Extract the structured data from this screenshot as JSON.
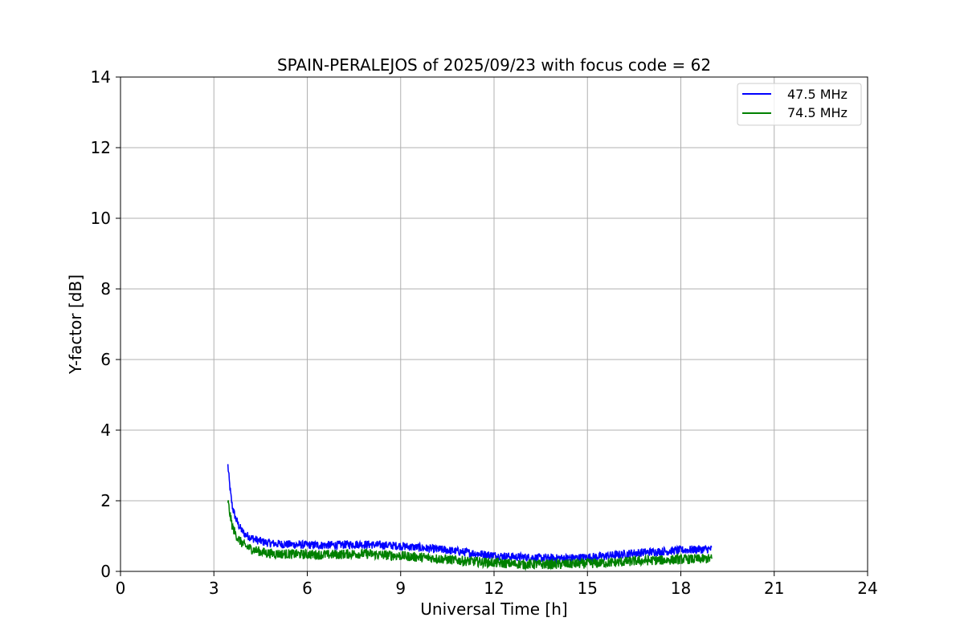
{
  "chart_data": {
    "type": "line",
    "title": "SPAIN-PERALEJOS of 2025/09/23 with focus code = 62",
    "xlabel": "Universal Time [h]",
    "ylabel": "Y-factor [dB]",
    "xlim": [
      0,
      24
    ],
    "ylim": [
      0,
      14
    ],
    "xticks": [
      0,
      3,
      6,
      9,
      12,
      15,
      18,
      21,
      24
    ],
    "yticks": [
      0,
      2,
      4,
      6,
      8,
      10,
      12,
      14
    ],
    "grid": true,
    "legend_position": "top-right",
    "series": [
      {
        "name": "47.5 MHz",
        "color": "#0000ff",
        "noise": 0.12,
        "x": [
          3.45,
          3.5,
          3.55,
          3.6,
          3.7,
          3.8,
          3.9,
          4.0,
          4.2,
          4.4,
          4.6,
          4.8,
          5.0,
          5.5,
          6.0,
          6.5,
          7.0,
          7.5,
          8.0,
          8.5,
          9.0,
          9.5,
          10.0,
          10.5,
          11.0,
          11.5,
          12.0,
          12.5,
          13.0,
          13.5,
          14.0,
          14.5,
          15.0,
          15.5,
          16.0,
          16.5,
          17.0,
          17.5,
          18.0,
          18.5,
          19.0
        ],
        "y": [
          3.0,
          2.5,
          2.1,
          1.8,
          1.5,
          1.3,
          1.15,
          1.05,
          0.95,
          0.88,
          0.83,
          0.8,
          0.78,
          0.76,
          0.75,
          0.74,
          0.75,
          0.77,
          0.76,
          0.74,
          0.72,
          0.68,
          0.64,
          0.6,
          0.55,
          0.5,
          0.45,
          0.42,
          0.4,
          0.38,
          0.37,
          0.38,
          0.4,
          0.43,
          0.47,
          0.52,
          0.55,
          0.57,
          0.6,
          0.62,
          0.63
        ]
      },
      {
        "name": "74.5 MHz",
        "color": "#008000",
        "noise": 0.14,
        "x": [
          3.45,
          3.5,
          3.55,
          3.6,
          3.7,
          3.8,
          3.9,
          4.0,
          4.2,
          4.4,
          4.6,
          4.8,
          5.0,
          5.5,
          6.0,
          6.5,
          7.0,
          7.5,
          8.0,
          8.5,
          9.0,
          9.5,
          10.0,
          10.5,
          11.0,
          11.5,
          12.0,
          12.5,
          13.0,
          13.5,
          14.0,
          14.5,
          15.0,
          15.5,
          16.0,
          16.5,
          17.0,
          17.5,
          18.0,
          18.5,
          19.0
        ],
        "y": [
          2.0,
          1.7,
          1.45,
          1.25,
          1.05,
          0.9,
          0.8,
          0.72,
          0.64,
          0.58,
          0.54,
          0.51,
          0.5,
          0.49,
          0.48,
          0.47,
          0.48,
          0.5,
          0.49,
          0.46,
          0.44,
          0.41,
          0.38,
          0.34,
          0.3,
          0.27,
          0.24,
          0.22,
          0.2,
          0.2,
          0.2,
          0.21,
          0.22,
          0.24,
          0.26,
          0.29,
          0.31,
          0.32,
          0.34,
          0.35,
          0.36
        ]
      }
    ]
  }
}
